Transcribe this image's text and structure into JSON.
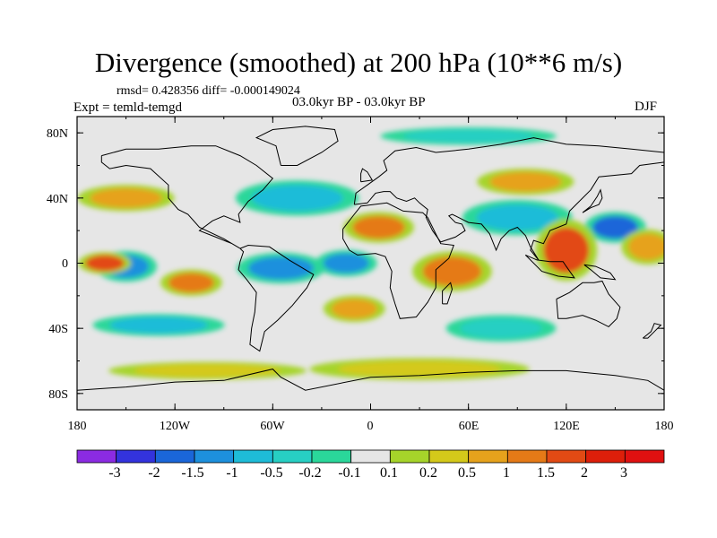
{
  "title": "Divergence (smoothed) at 200 hPa (10**6 m/s)",
  "stats": "rmsd= 0.428356 diff= -0.000149024",
  "experiment": "Expt = temld-temgd",
  "period": "03.0kyr BP - 03.0kyr BP",
  "season": "DJF",
  "map": {
    "projection": "cylindrical equidistant",
    "lat_range": [
      -90,
      90
    ],
    "lon_range": [
      -180,
      180
    ],
    "lat_ticks": [
      "80N",
      "40N",
      "0",
      "40S",
      "80S"
    ],
    "lon_ticks": [
      "180",
      "120W",
      "60W",
      "0",
      "60E",
      "120E",
      "180"
    ],
    "background_color": "#e6e6e6",
    "coastline_color": "#000000"
  },
  "colorbar": {
    "labels": [
      "-3",
      "-2",
      "-1.5",
      "-1",
      "-0.5",
      "-0.2",
      "-0.1",
      "0.1",
      "0.2",
      "0.5",
      "1",
      "1.5",
      "2",
      "3"
    ],
    "colors": [
      "#8b2be2",
      "#3333dd",
      "#1a66d9",
      "#1d90dd",
      "#1ebcd8",
      "#27cfc3",
      "#2ad79a",
      "#e6e6e6",
      "#a6d42a",
      "#d4c91a",
      "#e6a21c",
      "#e57a17",
      "#e24a14",
      "#dd1f0a",
      "#e01010"
    ]
  },
  "features": [
    {
      "name": "equatorial-pacific-convergence",
      "category": "-1",
      "lon": -150,
      "lat": -2,
      "rx": 14,
      "ry": 7
    },
    {
      "name": "south-america-convergence",
      "category": "-1",
      "lon": -55,
      "lat": -3,
      "rx": 20,
      "ry": 7
    },
    {
      "name": "tropical-atlantic-convergence",
      "category": "-1",
      "lon": -15,
      "lat": 0,
      "rx": 14,
      "ry": 6
    },
    {
      "name": "north-pacific-convergence",
      "category": "-1.5",
      "lon": 150,
      "lat": 22,
      "rx": 14,
      "ry": 7
    },
    {
      "name": "north-atlantic-convergence",
      "category": "-0.5",
      "lon": -45,
      "lat": 40,
      "rx": 28,
      "ry": 8
    },
    {
      "name": "asia-convergence",
      "category": "-0.5",
      "lon": 90,
      "lat": 28,
      "rx": 25,
      "ry": 8
    },
    {
      "name": "southern-ocean-convergence",
      "category": "-0.5",
      "lon": -130,
      "lat": -38,
      "rx": 30,
      "ry": 5
    },
    {
      "name": "indian-ocean-south-convergence",
      "category": "-0.2",
      "lon": 80,
      "lat": -40,
      "rx": 25,
      "ry": 6
    },
    {
      "name": "arctic-band-convergence",
      "category": "-0.2",
      "lon": 60,
      "lat": 78,
      "rx": 40,
      "ry": 4
    },
    {
      "name": "maritime-continent-divergence",
      "category": "1.5",
      "lon": 120,
      "lat": 8,
      "rx": 14,
      "ry": 14
    },
    {
      "name": "east-africa-divergence",
      "category": "1",
      "lon": 50,
      "lat": -5,
      "rx": 18,
      "ry": 9
    },
    {
      "name": "north-africa-divergence",
      "category": "1",
      "lon": 5,
      "lat": 22,
      "rx": 16,
      "ry": 7
    },
    {
      "name": "central-pacific-divergence",
      "category": "1.5",
      "lon": -163,
      "lat": 0,
      "rx": 12,
      "ry": 5
    },
    {
      "name": "south-pacific-divergence",
      "category": "1",
      "lon": -110,
      "lat": -12,
      "rx": 14,
      "ry": 6
    },
    {
      "name": "north-pacific-divergence",
      "category": "0.5",
      "lon": -150,
      "lat": 40,
      "rx": 22,
      "ry": 6
    },
    {
      "name": "eurasia-divergence",
      "category": "0.5",
      "lon": 95,
      "lat": 50,
      "rx": 22,
      "ry": 6
    },
    {
      "name": "east-pacific-divergence",
      "category": "0.5",
      "lon": 170,
      "lat": 10,
      "rx": 12,
      "ry": 8
    },
    {
      "name": "southern-ocean-divergence",
      "category": "0.2",
      "lon": 30,
      "lat": -65,
      "rx": 50,
      "ry": 5
    },
    {
      "name": "south-atlantic-divergence",
      "category": "0.5",
      "lon": -10,
      "lat": -28,
      "rx": 14,
      "ry": 6
    },
    {
      "name": "antarctic-band-divergence",
      "category": "0.2",
      "lon": -100,
      "lat": -66,
      "rx": 45,
      "ry": 4
    }
  ]
}
